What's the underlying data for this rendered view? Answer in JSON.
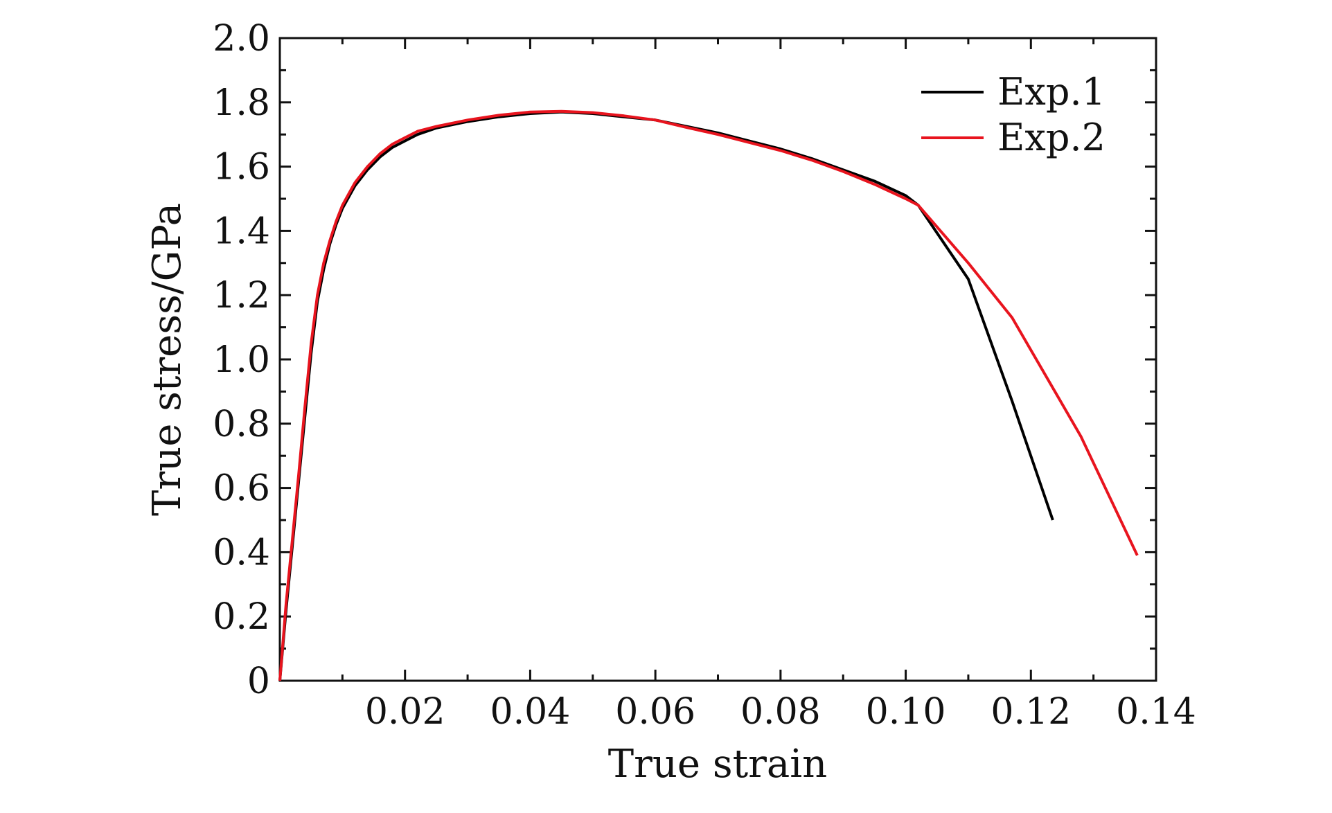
{
  "chart_data": {
    "type": "line",
    "title": "",
    "xlabel": "True strain",
    "ylabel": "True stress/GPa",
    "xlim": [
      0,
      0.14
    ],
    "ylim": [
      0,
      2.0
    ],
    "x_ticks": [
      0.02,
      0.04,
      0.06,
      0.08,
      0.1,
      0.12,
      0.14
    ],
    "x_tick_labels": [
      "0.02",
      "0.04",
      "0.06",
      "0.08",
      "0.10",
      "0.12",
      "0.14"
    ],
    "y_ticks": [
      0,
      0.2,
      0.4,
      0.6,
      0.8,
      1.0,
      1.2,
      1.4,
      1.6,
      1.8,
      2.0
    ],
    "y_tick_labels": [
      "0",
      "0.2",
      "0.4",
      "0.6",
      "0.8",
      "1.0",
      "1.2",
      "1.4",
      "1.6",
      "1.8",
      "2.0"
    ],
    "grid": false,
    "legend_position": "top-right",
    "series": [
      {
        "name": "Exp.1",
        "color": "#000000",
        "x": [
          0,
          0.001,
          0.002,
          0.003,
          0.004,
          0.005,
          0.006,
          0.007,
          0.008,
          0.009,
          0.01,
          0.012,
          0.014,
          0.016,
          0.018,
          0.02,
          0.022,
          0.025,
          0.03,
          0.035,
          0.04,
          0.045,
          0.05,
          0.055,
          0.06,
          0.065,
          0.07,
          0.075,
          0.08,
          0.085,
          0.09,
          0.095,
          0.1,
          0.102,
          0.11,
          0.117,
          0.1235
        ],
        "y": [
          0,
          0.22,
          0.42,
          0.62,
          0.82,
          1.02,
          1.18,
          1.28,
          1.36,
          1.42,
          1.47,
          1.54,
          1.59,
          1.63,
          1.66,
          1.68,
          1.7,
          1.72,
          1.74,
          1.755,
          1.765,
          1.77,
          1.765,
          1.755,
          1.745,
          1.725,
          1.705,
          1.68,
          1.655,
          1.625,
          1.59,
          1.555,
          1.51,
          1.48,
          1.25,
          0.87,
          0.5
        ]
      },
      {
        "name": "Exp.2",
        "color": "#e8141e",
        "x": [
          0,
          0.001,
          0.002,
          0.003,
          0.004,
          0.005,
          0.006,
          0.007,
          0.008,
          0.009,
          0.01,
          0.012,
          0.014,
          0.016,
          0.018,
          0.02,
          0.022,
          0.025,
          0.03,
          0.035,
          0.04,
          0.045,
          0.05,
          0.055,
          0.06,
          0.065,
          0.07,
          0.075,
          0.08,
          0.085,
          0.09,
          0.095,
          0.1,
          0.102,
          0.11,
          0.117,
          0.128,
          0.137
        ],
        "y": [
          0,
          0.24,
          0.44,
          0.64,
          0.85,
          1.05,
          1.2,
          1.3,
          1.37,
          1.43,
          1.48,
          1.55,
          1.6,
          1.64,
          1.67,
          1.69,
          1.71,
          1.725,
          1.745,
          1.76,
          1.77,
          1.772,
          1.768,
          1.758,
          1.745,
          1.722,
          1.7,
          1.675,
          1.65,
          1.62,
          1.585,
          1.545,
          1.5,
          1.48,
          1.3,
          1.13,
          0.76,
          0.39
        ]
      }
    ]
  }
}
